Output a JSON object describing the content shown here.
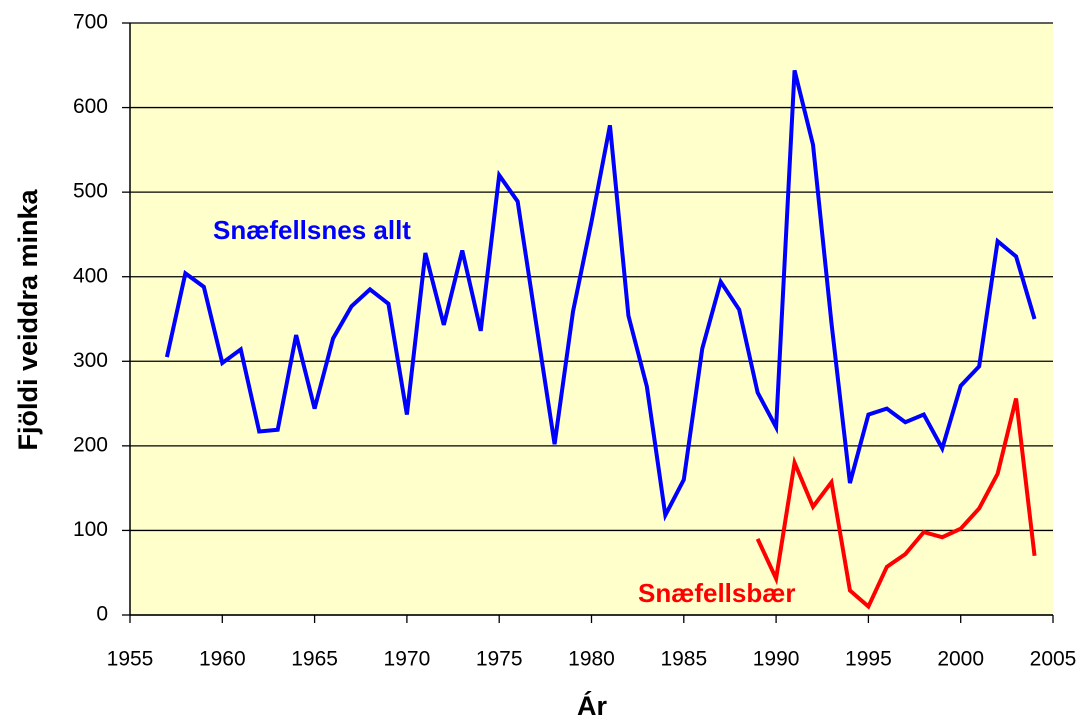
{
  "chart_data": {
    "type": "line",
    "xlabel": "Ár",
    "ylabel": "Fjöldi veiddra minka",
    "x": [
      1957,
      1958,
      1959,
      1960,
      1961,
      1962,
      1963,
      1964,
      1965,
      1966,
      1967,
      1968,
      1969,
      1970,
      1971,
      1972,
      1973,
      1974,
      1975,
      1976,
      1977,
      1978,
      1979,
      1980,
      1981,
      1982,
      1983,
      1984,
      1985,
      1986,
      1987,
      1988,
      1989,
      1990,
      1991,
      1992,
      1993,
      1994,
      1995,
      1996,
      1997,
      1998,
      1999,
      2000,
      2001,
      2002,
      2003,
      2004
    ],
    "series": [
      {
        "name": "Snæfellsnes allt",
        "color": "#0000ff",
        "values": [
          305,
          404,
          388,
          298,
          314,
          217,
          219,
          331,
          244,
          327,
          365,
          385,
          368,
          237,
          428,
          343,
          431,
          336,
          520,
          489,
          345,
          202,
          359,
          465,
          579,
          354,
          270,
          118,
          160,
          315,
          394,
          361,
          263,
          222,
          644,
          556,
          345,
          156,
          237,
          244,
          228,
          237,
          197,
          271,
          294,
          442,
          424,
          350
        ]
      },
      {
        "name": "Snæfellsbær",
        "color": "#ff0000",
        "values": [
          null,
          null,
          null,
          null,
          null,
          null,
          null,
          null,
          null,
          null,
          null,
          null,
          null,
          null,
          null,
          null,
          null,
          null,
          null,
          null,
          null,
          null,
          null,
          null,
          null,
          null,
          null,
          null,
          null,
          null,
          null,
          null,
          90,
          43,
          180,
          128,
          157,
          29,
          10,
          57,
          72,
          98,
          92,
          102,
          126,
          167,
          256,
          70
        ]
      }
    ],
    "xlim": [
      1955,
      2005
    ],
    "xticks": [
      1955,
      1960,
      1965,
      1970,
      1975,
      1980,
      1985,
      1990,
      1995,
      2000,
      2005
    ],
    "ylim": [
      0,
      700
    ],
    "yticks": [
      0,
      100,
      200,
      300,
      400,
      500,
      600,
      700
    ],
    "grid": true,
    "background": "#ffffcc"
  }
}
